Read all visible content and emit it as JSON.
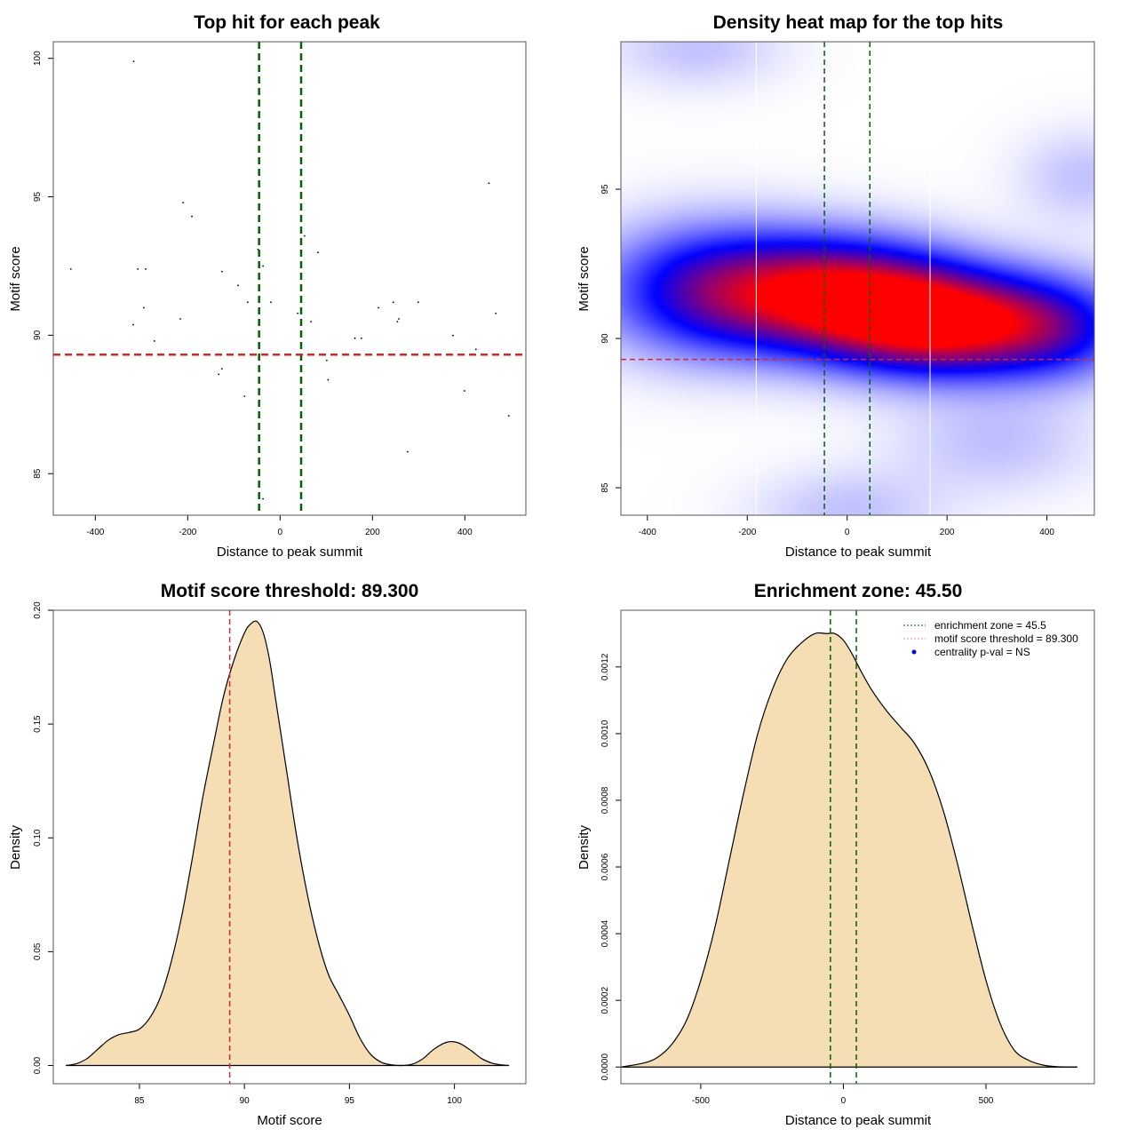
{
  "chart_data": [
    {
      "id": "scatter",
      "type": "scatter",
      "title": "Top hit for each peak",
      "xlabel": "Distance to peak summit",
      "ylabel": "Motif score",
      "xlim": [
        -491,
        532
      ],
      "ylim": [
        83.5,
        100.6
      ],
      "xticks": [
        -400,
        -200,
        0,
        200,
        400
      ],
      "yticks": [
        85,
        90,
        95,
        100
      ],
      "vlines": {
        "values": [
          -45.5,
          45.5
        ],
        "color": "#006400",
        "style": "dashed"
      },
      "hlines": {
        "values": [
          89.3
        ],
        "color": "#d62728",
        "style": "dashed"
      },
      "points": [
        [
          -317,
          99.89
        ],
        [
          -210,
          94.79
        ],
        [
          -191,
          94.29
        ],
        [
          -48,
          93.1
        ],
        [
          -37,
          92.5
        ],
        [
          -453,
          92.39
        ],
        [
          -308,
          92.39
        ],
        [
          -291,
          92.39
        ],
        [
          -126,
          92.3
        ],
        [
          -91,
          91.8
        ],
        [
          -70,
          91.19
        ],
        [
          -20,
          91.19
        ],
        [
          -295,
          90.99
        ],
        [
          -216,
          90.59
        ],
        [
          -318,
          90.38
        ],
        [
          -272,
          89.79
        ],
        [
          -126,
          88.79
        ],
        [
          -133,
          88.59
        ],
        [
          -77,
          87.8
        ],
        [
          -37,
          84.09
        ],
        [
          452,
          95.49
        ],
        [
          53,
          93.59
        ],
        [
          82,
          92.99
        ],
        [
          38,
          90.79
        ],
        [
          67,
          90.49
        ],
        [
          213,
          90.99
        ],
        [
          245,
          91.19
        ],
        [
          299,
          91.19
        ],
        [
          257,
          90.59
        ],
        [
          254,
          90.49
        ],
        [
          467,
          90.79
        ],
        [
          162,
          89.89
        ],
        [
          176,
          89.89
        ],
        [
          374,
          89.99
        ],
        [
          424,
          89.49
        ],
        [
          101,
          89.09
        ],
        [
          104,
          88.39
        ],
        [
          399,
          87.99
        ],
        [
          495,
          87.09
        ],
        [
          276,
          85.79
        ]
      ]
    },
    {
      "id": "heatmap",
      "type": "heatmap",
      "title": "Density heat map for the top hits",
      "xlabel": "Distance to peak summit",
      "ylabel": "Motif score",
      "xlim": [
        -453,
        495
      ],
      "ylim": [
        84.08,
        99.94
      ],
      "xticks": [
        -400,
        -200,
        0,
        200,
        400
      ],
      "yticks": [
        85,
        90,
        95
      ],
      "colormap": [
        "#ffffff",
        "#0000ff",
        "#ff0000"
      ],
      "hotspots": [
        {
          "x": 200,
          "y": 90.5,
          "weight": 1.0,
          "sx": 160,
          "sy": 1.2
        },
        {
          "x": -20,
          "y": 91.5,
          "weight": 0.85,
          "sx": 160,
          "sy": 1.3
        },
        {
          "x": -280,
          "y": 91.6,
          "weight": 0.55,
          "sx": 150,
          "sy": 1.5
        },
        {
          "x": 430,
          "y": 90.3,
          "weight": 0.35,
          "sx": 110,
          "sy": 1.2
        },
        {
          "x": 470,
          "y": 95.4,
          "weight": 0.12,
          "sx": 90,
          "sy": 1.1
        },
        {
          "x": -300,
          "y": 99.8,
          "weight": 0.12,
          "sx": 120,
          "sy": 1.0
        },
        {
          "x": 0,
          "y": 84.2,
          "weight": 0.12,
          "sx": 130,
          "sy": 1.0
        },
        {
          "x": 300,
          "y": 86.5,
          "weight": 0.12,
          "sx": 140,
          "sy": 1.2
        }
      ],
      "white_vlines": [
        -182,
        166
      ],
      "vlines": {
        "values": [
          -45.5,
          45.5
        ],
        "color": "#006400",
        "style": "dashed"
      },
      "hlines": {
        "values": [
          89.3
        ],
        "color": "#d62728",
        "style": "dashed"
      }
    },
    {
      "id": "score-density",
      "type": "area",
      "title": "Motif score threshold: 89.300",
      "xlabel": "Motif score",
      "ylabel": "Density",
      "xlim": [
        80.9,
        103.4
      ],
      "ylim": [
        -0.008,
        0.2
      ],
      "xticks": [
        85,
        90,
        95,
        100
      ],
      "yticks": [
        "0.00",
        "0.05",
        "0.10",
        "0.15",
        "0.20"
      ],
      "fill": "#f5deb3",
      "vlines": {
        "values": [
          89.3
        ],
        "color": "#d62728",
        "style": "dashed"
      },
      "x": [
        81.5,
        82.0,
        82.5,
        83.0,
        83.5,
        84.0,
        84.5,
        85.0,
        85.5,
        86.0,
        86.5,
        87.0,
        87.5,
        88.0,
        88.5,
        89.0,
        89.5,
        90.0,
        90.3,
        90.6,
        90.9,
        91.2,
        91.5,
        92.0,
        92.5,
        93.0,
        93.5,
        94.0,
        94.5,
        95.0,
        95.5,
        96.0,
        96.5,
        97.0,
        97.5,
        98.0,
        98.5,
        99.0,
        99.5,
        99.9,
        100.3,
        100.8,
        101.3,
        101.8,
        102.3,
        102.6
      ],
      "y": [
        0.0,
        0.0008,
        0.003,
        0.007,
        0.011,
        0.0135,
        0.0145,
        0.016,
        0.021,
        0.03,
        0.045,
        0.065,
        0.09,
        0.117,
        0.14,
        0.162,
        0.178,
        0.19,
        0.194,
        0.195,
        0.19,
        0.178,
        0.16,
        0.13,
        0.1,
        0.075,
        0.055,
        0.04,
        0.031,
        0.022,
        0.012,
        0.005,
        0.0015,
        0.0003,
        0.0,
        0.0006,
        0.003,
        0.007,
        0.0098,
        0.0105,
        0.0095,
        0.0065,
        0.003,
        0.001,
        0.0002,
        0.0
      ]
    },
    {
      "id": "distance-density",
      "type": "area",
      "title": "Enrichment zone: 45.50",
      "xlabel": "Distance to peak summit",
      "ylabel": "Density",
      "xlim": [
        -780,
        880
      ],
      "ylim": [
        -5e-05,
        0.00137
      ],
      "xticks": [
        -500,
        0,
        500
      ],
      "yticks": [
        "0.0000",
        "0.0002",
        "0.0004",
        "0.0006",
        "0.0008",
        "0.0010",
        "0.0012"
      ],
      "fill": "#f5deb3",
      "vlines": {
        "values": [
          -45.5,
          45.5
        ],
        "color": "#006400",
        "style": "dashed"
      },
      "legend": {
        "position": "top-right",
        "entries": [
          {
            "label": "enrichment zone = 45.5",
            "kind": "dotted-line",
            "color": "#006400"
          },
          {
            "label": "motif score threshold = 89.300",
            "kind": "dotted-line",
            "color": "#f08080"
          },
          {
            "label": "centrality p-val = NS",
            "kind": "dot",
            "color": "#0000ff"
          }
        ]
      },
      "x": [
        -780,
        -700,
        -650,
        -600,
        -550,
        -500,
        -450,
        -400,
        -350,
        -300,
        -250,
        -200,
        -150,
        -100,
        -60,
        -30,
        0,
        30,
        60,
        100,
        150,
        200,
        250,
        300,
        350,
        400,
        450,
        500,
        550,
        600,
        650,
        700,
        750,
        820
      ],
      "y": [
        0.0,
        1.2e-05,
        3e-05,
        7e-05,
        0.00014,
        0.00026,
        0.00042,
        0.00062,
        0.00082,
        0.001,
        0.00113,
        0.00122,
        0.00127,
        0.0013,
        0.0013,
        0.0013,
        0.00128,
        0.00124,
        0.00119,
        0.00113,
        0.00107,
        0.00102,
        0.00097,
        0.00089,
        0.00077,
        0.00061,
        0.00043,
        0.00026,
        0.00013,
        5e-05,
        2e-05,
        6e-06,
        1e-06,
        0.0
      ]
    }
  ]
}
